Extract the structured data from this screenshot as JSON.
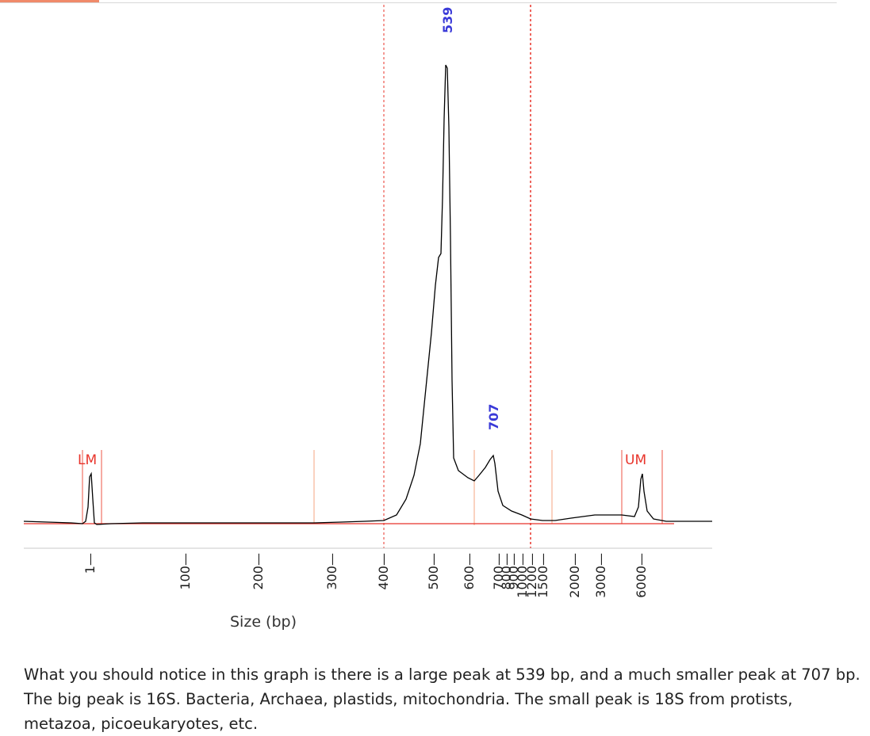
{
  "chart_data": {
    "type": "line",
    "title": "",
    "xlabel": "Size (bp)",
    "ylabel": "",
    "x_scale": "nonlinear (electrophoresis sizing)",
    "x_ticks": [
      1,
      100,
      200,
      300,
      400,
      500,
      600,
      700,
      800,
      900,
      1000,
      1200,
      1500,
      2000,
      3000,
      6000
    ],
    "peak_labels": [
      {
        "label": "539",
        "x": 539,
        "color": "#3a3ad8"
      },
      {
        "label": "707",
        "x": 707,
        "color": "#3a3ad8"
      }
    ],
    "markers": [
      {
        "label": "LM",
        "color": "#e8332a"
      },
      {
        "label": "UM",
        "color": "#e8332a"
      }
    ],
    "grid": false,
    "legend": "none",
    "line_color": "#000000",
    "baseline_color": "#e8332a",
    "region_line_color": "#f4a582",
    "dashed_line_color": "#e8332a",
    "series": [
      {
        "values": [
          {
            "x": 1,
            "y": 2.6
          },
          {
            "x": 100,
            "y": 0.1
          },
          {
            "x": 200,
            "y": 0.1
          },
          {
            "x": 300,
            "y": 0.2
          },
          {
            "x": 400,
            "y": 0.3
          },
          {
            "x": 450,
            "y": 6
          },
          {
            "x": 500,
            "y": 20
          },
          {
            "x": 520,
            "y": 33
          },
          {
            "x": 539,
            "y": 58
          },
          {
            "x": 560,
            "y": 10
          },
          {
            "x": 620,
            "y": 6
          },
          {
            "x": 707,
            "y": 9
          },
          {
            "x": 750,
            "y": 2
          },
          {
            "x": 1000,
            "y": 0.3
          },
          {
            "x": 1500,
            "y": 0.4
          },
          {
            "x": 2000,
            "y": 1
          },
          {
            "x": 3000,
            "y": 1.2
          },
          {
            "x": 6000,
            "y": 5
          },
          {
            "x": 8000,
            "y": 0.5
          }
        ]
      }
    ]
  },
  "caption": {
    "text": "What you should notice in this graph is there is a large peak at 539 bp, and a much smaller peak at 707 bp. The big peak is 16S. Bacteria, Archaea, plastids, mitochondria. The small peak is 18S from protists, metazoa, picoeukaryotes, etc."
  }
}
